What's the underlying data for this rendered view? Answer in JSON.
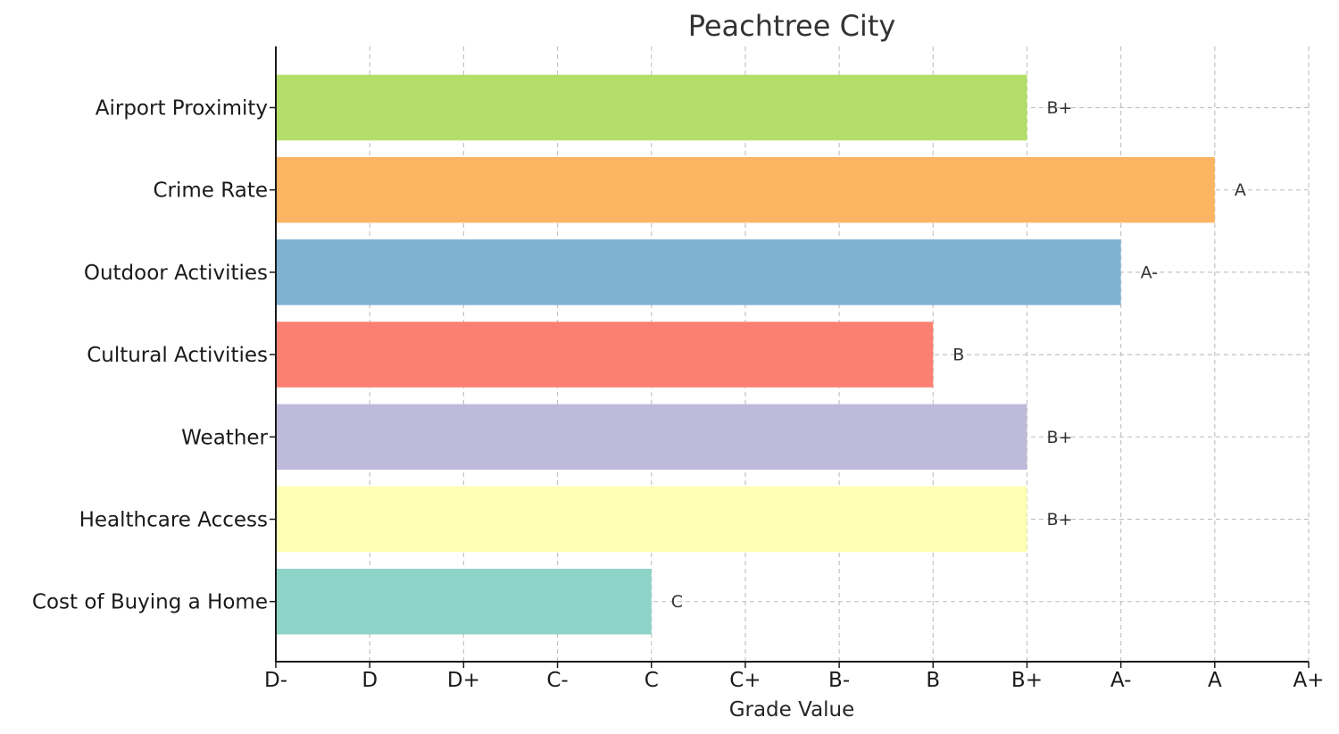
{
  "chart_data": {
    "type": "bar",
    "orientation": "horizontal",
    "title": "Peachtree City",
    "xlabel": "Grade Value",
    "ylabel": "",
    "x_tick_labels": [
      "D-",
      "D",
      "D+",
      "C-",
      "C",
      "C+",
      "B-",
      "B",
      "B+",
      "A-",
      "A",
      "A+"
    ],
    "xlim": [
      0,
      11
    ],
    "grid": true,
    "categories": [
      "Airport Proximity",
      "Crime Rate",
      "Outdoor Activities",
      "Cultural Activities",
      "Weather",
      "Healthcare Access",
      "Cost of Buying a Home"
    ],
    "values": [
      8,
      10,
      9,
      7,
      8,
      8,
      4
    ],
    "value_labels": [
      "B+",
      "A",
      "A-",
      "B",
      "B+",
      "B+",
      "C"
    ],
    "colors": [
      "#b3de69",
      "#fdb462",
      "#80b1d3",
      "#fb8072",
      "#bebada",
      "#ffffb3",
      "#8dd3c7"
    ]
  }
}
